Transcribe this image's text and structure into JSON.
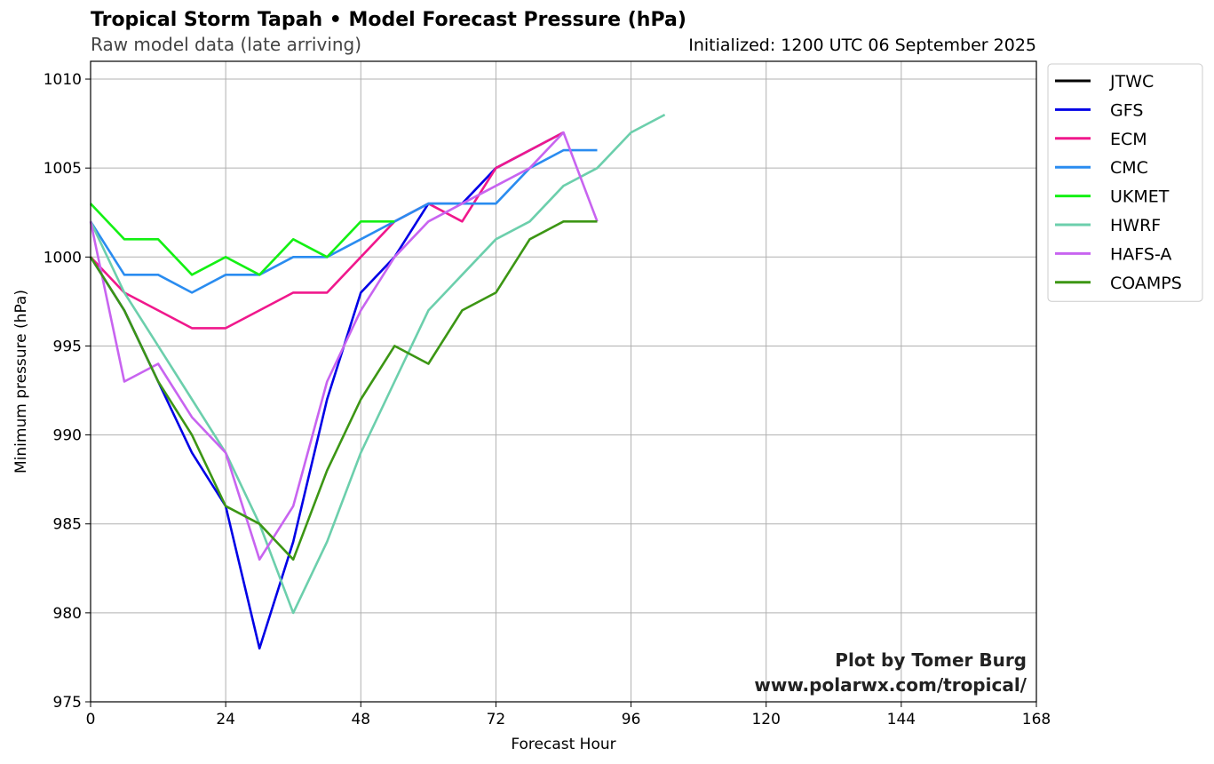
{
  "header": {
    "title": "Tropical Storm Tapah • Model Forecast Pressure (hPa)",
    "subtitle": "Raw model data (late arriving)",
    "initialized": "Initialized: 1200 UTC 06 September 2025"
  },
  "credit": {
    "line1": "Plot by Tomer Burg",
    "line2": "www.polarwx.com/tropical/"
  },
  "chart_data": {
    "type": "line",
    "xlabel": "Forecast Hour",
    "ylabel": "Minimum pressure (hPa)",
    "xlim": [
      0,
      168
    ],
    "ylim": [
      975,
      1011
    ],
    "xticks": [
      0,
      24,
      48,
      72,
      96,
      120,
      144,
      168
    ],
    "yticks": [
      975,
      980,
      985,
      990,
      995,
      1000,
      1005,
      1010
    ],
    "grid": true,
    "legend_position": "outside-top-right",
    "series": [
      {
        "name": "JTWC",
        "color": "#000000",
        "x": [],
        "y": []
      },
      {
        "name": "GFS",
        "color": "#0000e6",
        "x": [
          0,
          6,
          12,
          18,
          24,
          30,
          36,
          42,
          48,
          54,
          60,
          66,
          72,
          78,
          84
        ],
        "y": [
          1000,
          997,
          993,
          989,
          986,
          978,
          984,
          992,
          998,
          1000,
          1003,
          1003,
          1005,
          1006,
          1007
        ]
      },
      {
        "name": "ECM",
        "color": "#f0188c",
        "x": [
          0,
          6,
          12,
          18,
          24,
          30,
          36,
          42,
          48,
          54,
          60,
          66,
          72,
          78,
          84
        ],
        "y": [
          1000,
          998,
          997,
          996,
          996,
          997,
          998,
          998,
          1000,
          1002,
          1003,
          1002,
          1005,
          1006,
          1007
        ]
      },
      {
        "name": "CMC",
        "color": "#2a8cf0",
        "x": [
          0,
          6,
          12,
          18,
          24,
          30,
          36,
          42,
          48,
          54,
          60,
          66,
          72,
          78,
          84,
          90
        ],
        "y": [
          1002,
          999,
          999,
          998,
          999,
          999,
          1000,
          1000,
          1001,
          1002,
          1003,
          1003,
          1003,
          1005,
          1006,
          1006
        ]
      },
      {
        "name": "UKMET",
        "color": "#14f014",
        "x": [
          0,
          6,
          12,
          18,
          24,
          30,
          36,
          42,
          48,
          54
        ],
        "y": [
          1003,
          1001,
          1001,
          999,
          1000,
          999,
          1001,
          1000,
          1002,
          1002
        ]
      },
      {
        "name": "HWRF",
        "color": "#6ccfac",
        "x": [
          0,
          6,
          12,
          18,
          24,
          30,
          36,
          42,
          48,
          54,
          60,
          66,
          72,
          78,
          84,
          90,
          96,
          102
        ],
        "y": [
          1002,
          998,
          995,
          992,
          989,
          985,
          980,
          984,
          989,
          993,
          997,
          999,
          1001,
          1002,
          1004,
          1005,
          1007,
          1008
        ]
      },
      {
        "name": "HAFS-A",
        "color": "#c864f0",
        "x": [
          0,
          6,
          12,
          18,
          24,
          30,
          36,
          42,
          48,
          54,
          60,
          66,
          72,
          78,
          84,
          90
        ],
        "y": [
          1002,
          993,
          994,
          991,
          989,
          983,
          986,
          993,
          997,
          1000,
          1002,
          1003,
          1004,
          1005,
          1007,
          1002
        ]
      },
      {
        "name": "COAMPS",
        "color": "#3c9614",
        "x": [
          0,
          6,
          12,
          18,
          24,
          30,
          36,
          42,
          48,
          54,
          60,
          66,
          72,
          78,
          84,
          90
        ],
        "y": [
          1000,
          997,
          993,
          990,
          986,
          985,
          983,
          988,
          992,
          995,
          994,
          997,
          998,
          1001,
          1002,
          1002
        ]
      }
    ]
  }
}
